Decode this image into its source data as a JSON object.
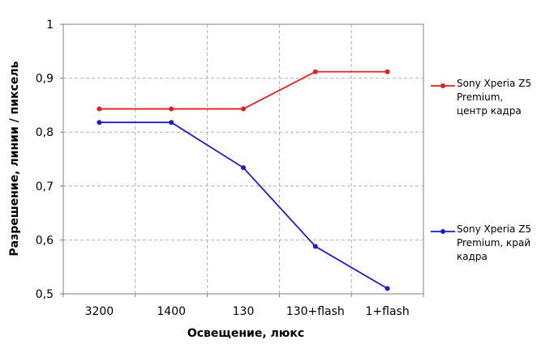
{
  "chart_data": {
    "type": "line",
    "categories": [
      "3200",
      "1400",
      "130",
      "130+flash",
      "1+flash"
    ],
    "xlabel": "Освещение,  люкс",
    "ylabel": "Разрешение,  линии / пиксель",
    "ylim": [
      0.5,
      1.0
    ],
    "yticks": [
      "0,5",
      "0,6",
      "0,7",
      "0,8",
      "0,9",
      "1"
    ],
    "grid": true,
    "legend_position": "right",
    "series": [
      {
        "name": "Sony Xperia Z5 Premium, центр кадра",
        "color": "#e02020",
        "values": [
          0.843,
          0.843,
          0.843,
          0.912,
          0.912
        ]
      },
      {
        "name": "Sony Xperia Z5 Premium, край кадра",
        "color": "#1c1ccc",
        "values": [
          0.818,
          0.818,
          0.734,
          0.588,
          0.51
        ]
      }
    ]
  }
}
